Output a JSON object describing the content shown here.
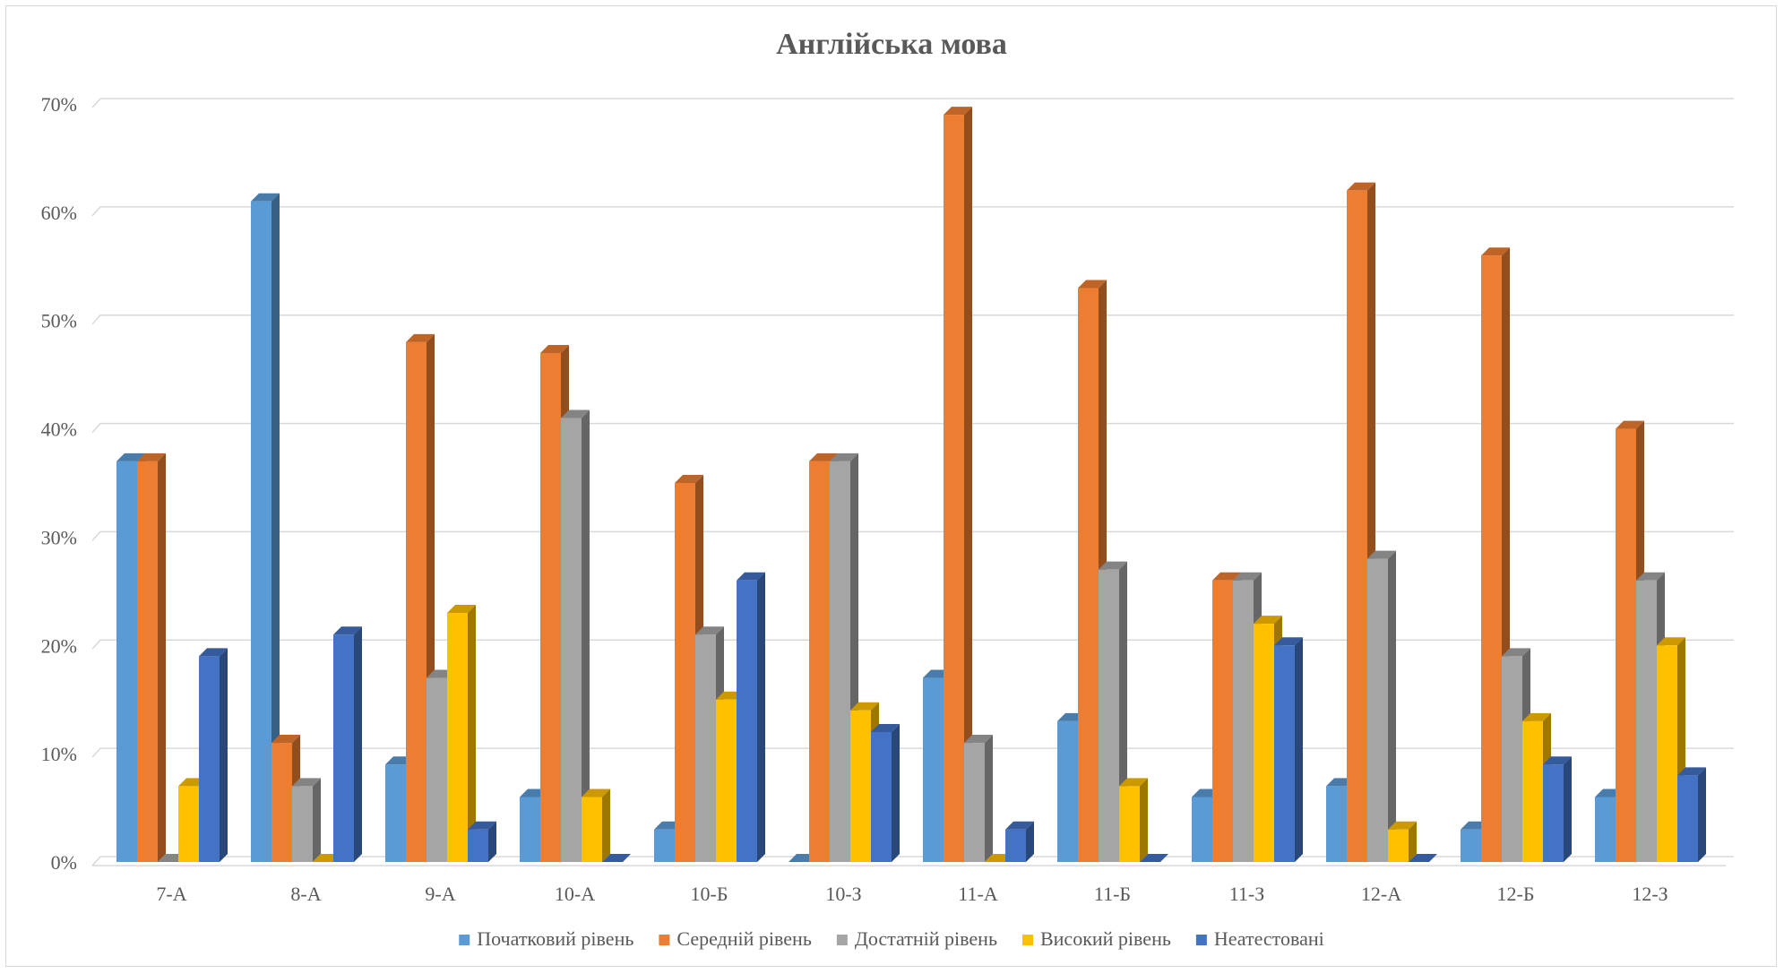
{
  "chart_data": {
    "type": "bar",
    "title": "Англійська мова",
    "xlabel": "",
    "ylabel": "",
    "ylim": [
      0,
      70
    ],
    "y_unit": "%",
    "y_ticks": [
      "0%",
      "10%",
      "20%",
      "30%",
      "40%",
      "50%",
      "60%",
      "70%"
    ],
    "grid": true,
    "legend_position": "bottom",
    "style": "3d-clustered-column",
    "categories": [
      "7-А",
      "8-А",
      "9-А",
      "10-А",
      "10-Б",
      "10-З",
      "11-А",
      "11-Б",
      "11-З",
      "12-А",
      "12-Б",
      "12-З"
    ],
    "series": [
      {
        "name": "Початковий рівень",
        "color": "#5B9BD5",
        "values": [
          37,
          61,
          9,
          6,
          3,
          0,
          17,
          13,
          6,
          7,
          3,
          6
        ]
      },
      {
        "name": "Середній рівень",
        "color": "#ED7D31",
        "values": [
          37,
          11,
          48,
          47,
          35,
          37,
          69,
          53,
          26,
          62,
          56,
          40
        ]
      },
      {
        "name": "Достатній рівень",
        "color": "#A5A5A5",
        "values": [
          0,
          7,
          17,
          41,
          21,
          37,
          11,
          27,
          26,
          28,
          19,
          26
        ]
      },
      {
        "name": "Високий рівень",
        "color": "#FFC000",
        "values": [
          7,
          0,
          23,
          6,
          15,
          14,
          0,
          7,
          22,
          3,
          13,
          20
        ]
      },
      {
        "name": "Неатестовані",
        "color": "#4472C4",
        "values": [
          19,
          21,
          3,
          0,
          26,
          12,
          3,
          0,
          20,
          0,
          9,
          8
        ]
      }
    ]
  }
}
